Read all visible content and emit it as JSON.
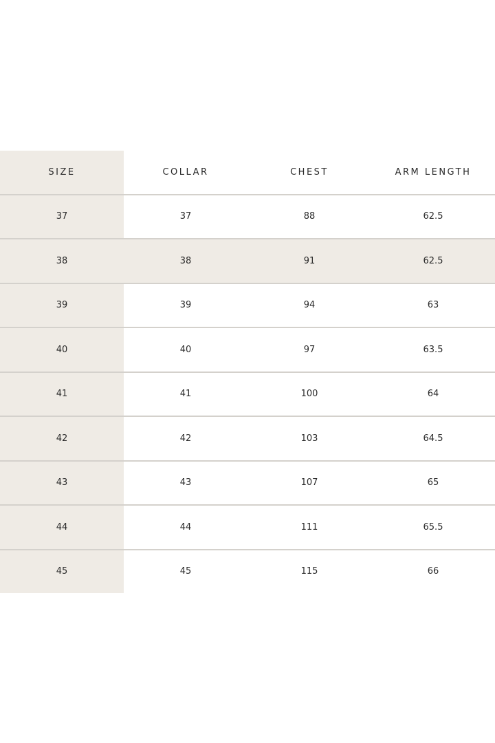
{
  "table": {
    "headers": [
      "SIZE",
      "COLLAR",
      "CHEST",
      "ARM LENGTH"
    ],
    "rows": [
      [
        "37",
        "37",
        "88",
        "62.5"
      ],
      [
        "38",
        "38",
        "91",
        "62.5"
      ],
      [
        "39",
        "39",
        "94",
        "63"
      ],
      [
        "40",
        "40",
        "97",
        "63.5"
      ],
      [
        "41",
        "41",
        "100",
        "64"
      ],
      [
        "42",
        "42",
        "103",
        "64.5"
      ],
      [
        "43",
        "43",
        "107",
        "65"
      ],
      [
        "44",
        "44",
        "111",
        "65.5"
      ],
      [
        "45",
        "45",
        "115",
        "66"
      ]
    ],
    "highlighted_row": "38",
    "colors": {
      "size_column_bg": "#efebe5",
      "divider": "#d4d1cc",
      "text": "#2a2a2a"
    }
  }
}
